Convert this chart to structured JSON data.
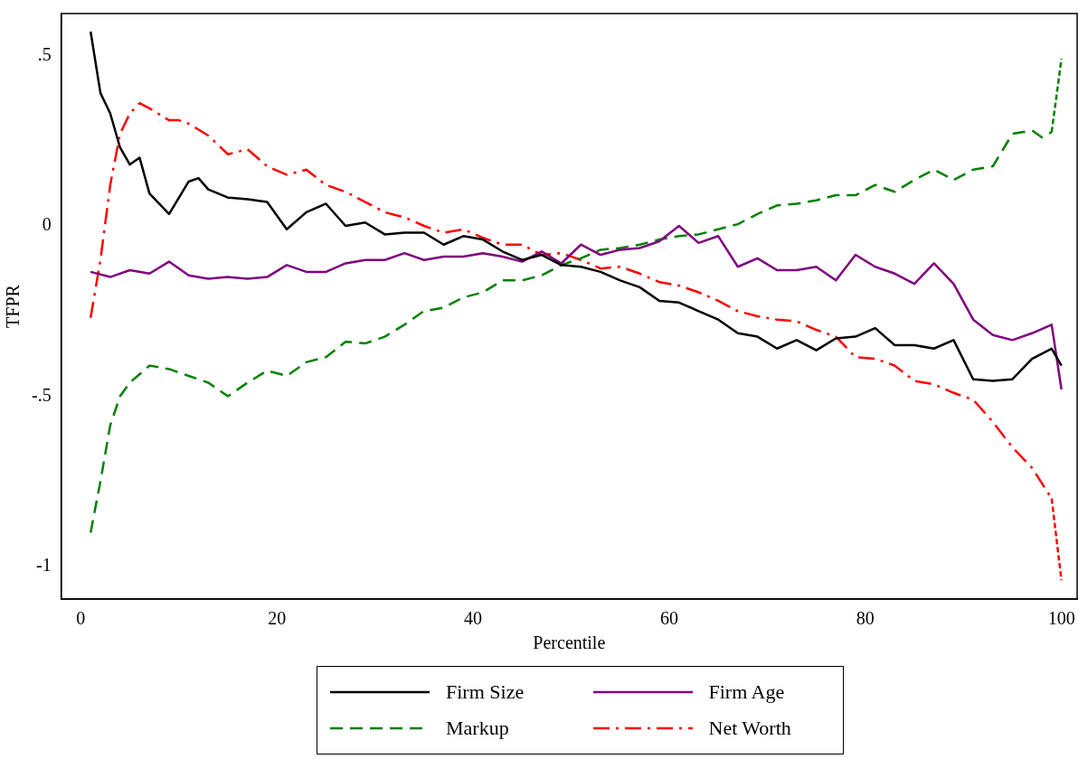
{
  "chart_data": {
    "type": "line",
    "xlabel": "Percentile",
    "ylabel": "TFPR",
    "xlim": [
      -2,
      101.6
    ],
    "xticks": [
      0,
      20,
      40,
      60,
      80,
      100
    ],
    "ylim": [
      -1.095,
      0.623
    ],
    "yticks": [
      {
        "value": -1,
        "label": "-1"
      },
      {
        "value": -0.5,
        "label": "-.5"
      },
      {
        "value": 0,
        "label": "0"
      },
      {
        "value": 0.5,
        "label": ".5"
      }
    ],
    "grid": false,
    "legend": "bottom",
    "marker": "none",
    "series": [
      {
        "name": "Firm Size",
        "color": "#000000",
        "line_style": "solid",
        "x": [
          1,
          2,
          3,
          4,
          5,
          6,
          7,
          9,
          11,
          12,
          13,
          15,
          17,
          19,
          21,
          23,
          25,
          27,
          29,
          31,
          33,
          35,
          37,
          39,
          41,
          43,
          45,
          47,
          49,
          51,
          53,
          55,
          57,
          59,
          61,
          63,
          65,
          67,
          69,
          71,
          73,
          75,
          77,
          79,
          81,
          83,
          85,
          87,
          89,
          91,
          93,
          95,
          97,
          99,
          100
        ],
        "values": [
          0.57,
          0.39,
          0.33,
          0.23,
          0.18,
          0.2,
          0.095,
          0.035,
          0.13,
          0.14,
          0.107,
          0.083,
          0.078,
          0.07,
          -0.01,
          0.04,
          0.065,
          0,
          0.01,
          -0.025,
          -0.02,
          -0.02,
          -0.055,
          -0.03,
          -0.04,
          -0.075,
          -0.1,
          -0.085,
          -0.115,
          -0.12,
          -0.135,
          -0.16,
          -0.18,
          -0.22,
          -0.225,
          -0.25,
          -0.275,
          -0.315,
          -0.325,
          -0.36,
          -0.335,
          -0.365,
          -0.33,
          -0.325,
          -0.3,
          -0.35,
          -0.35,
          -0.36,
          -0.335,
          -0.45,
          -0.455,
          -0.45,
          -0.39,
          -0.36,
          -0.41
        ]
      },
      {
        "name": "Firm Age",
        "color": "#7f007f",
        "line_style": "solid",
        "x": [
          1,
          3,
          5,
          7,
          9,
          11,
          13,
          15,
          17,
          19,
          21,
          23,
          25,
          27,
          29,
          31,
          33,
          35,
          37,
          39,
          41,
          43,
          45,
          47,
          49,
          51,
          53,
          55,
          57,
          59,
          61,
          63,
          65,
          67,
          69,
          71,
          73,
          75,
          77,
          79,
          81,
          83,
          85,
          87,
          89,
          91,
          93,
          95,
          97,
          99,
          100
        ],
        "values": [
          -0.135,
          -0.15,
          -0.13,
          -0.14,
          -0.105,
          -0.145,
          -0.155,
          -0.15,
          -0.155,
          -0.15,
          -0.115,
          -0.135,
          -0.135,
          -0.11,
          -0.1,
          -0.1,
          -0.08,
          -0.1,
          -0.09,
          -0.09,
          -0.08,
          -0.09,
          -0.105,
          -0.075,
          -0.11,
          -0.055,
          -0.085,
          -0.07,
          -0.065,
          -0.045,
          0,
          -0.05,
          -0.03,
          -0.12,
          -0.095,
          -0.13,
          -0.13,
          -0.12,
          -0.16,
          -0.085,
          -0.12,
          -0.14,
          -0.17,
          -0.11,
          -0.17,
          -0.275,
          -0.32,
          -0.335,
          -0.315,
          -0.29,
          -0.48
        ]
      },
      {
        "name": "Markup",
        "color": "#008000",
        "line_style": "dashed",
        "x": [
          1,
          2,
          3,
          4,
          5,
          7,
          9,
          11,
          13,
          15,
          17,
          19,
          21,
          23,
          25,
          27,
          29,
          31,
          33,
          35,
          37,
          39,
          41,
          43,
          45,
          47,
          49,
          51,
          53,
          55,
          57,
          59,
          61,
          63,
          65,
          67,
          69,
          71,
          73,
          75,
          77,
          79,
          81,
          83,
          85,
          87,
          89,
          91,
          93,
          95,
          97,
          98,
          99,
          100
        ],
        "values": [
          -0.9,
          -0.75,
          -0.585,
          -0.5,
          -0.46,
          -0.41,
          -0.42,
          -0.44,
          -0.46,
          -0.5,
          -0.46,
          -0.425,
          -0.44,
          -0.4,
          -0.385,
          -0.34,
          -0.345,
          -0.325,
          -0.29,
          -0.25,
          -0.24,
          -0.21,
          -0.195,
          -0.16,
          -0.16,
          -0.145,
          -0.115,
          -0.095,
          -0.07,
          -0.065,
          -0.055,
          -0.04,
          -0.03,
          -0.025,
          -0.01,
          0.005,
          0.035,
          0.06,
          0.065,
          0.075,
          0.09,
          0.09,
          0.12,
          0.1,
          0.135,
          0.165,
          0.135,
          0.165,
          0.175,
          0.27,
          0.28,
          0.26,
          0.275,
          0.49
        ]
      },
      {
        "name": "Net Worth",
        "color": "#ff0000",
        "line_style": "dashdot",
        "x": [
          1,
          2,
          3,
          4,
          5,
          6,
          7,
          9,
          10,
          11,
          13,
          15,
          17,
          19,
          21,
          23,
          25,
          27,
          29,
          31,
          33,
          35,
          37,
          39,
          41,
          43,
          45,
          47,
          49,
          51,
          53,
          55,
          57,
          59,
          61,
          63,
          65,
          67,
          69,
          71,
          73,
          75,
          77,
          79,
          81,
          83,
          85,
          87,
          89,
          91,
          93,
          95,
          97,
          99,
          100
        ],
        "values": [
          -0.27,
          -0.1,
          0.12,
          0.27,
          0.33,
          0.36,
          0.345,
          0.31,
          0.31,
          0.3,
          0.265,
          0.21,
          0.225,
          0.175,
          0.15,
          0.165,
          0.12,
          0.1,
          0.07,
          0.04,
          0.025,
          0,
          -0.02,
          -0.01,
          -0.035,
          -0.055,
          -0.055,
          -0.085,
          -0.08,
          -0.1,
          -0.125,
          -0.12,
          -0.14,
          -0.165,
          -0.175,
          -0.195,
          -0.22,
          -0.25,
          -0.265,
          -0.275,
          -0.28,
          -0.305,
          -0.325,
          -0.385,
          -0.39,
          -0.41,
          -0.455,
          -0.465,
          -0.49,
          -0.51,
          -0.575,
          -0.65,
          -0.71,
          -0.8,
          -1.04
        ]
      }
    ]
  }
}
